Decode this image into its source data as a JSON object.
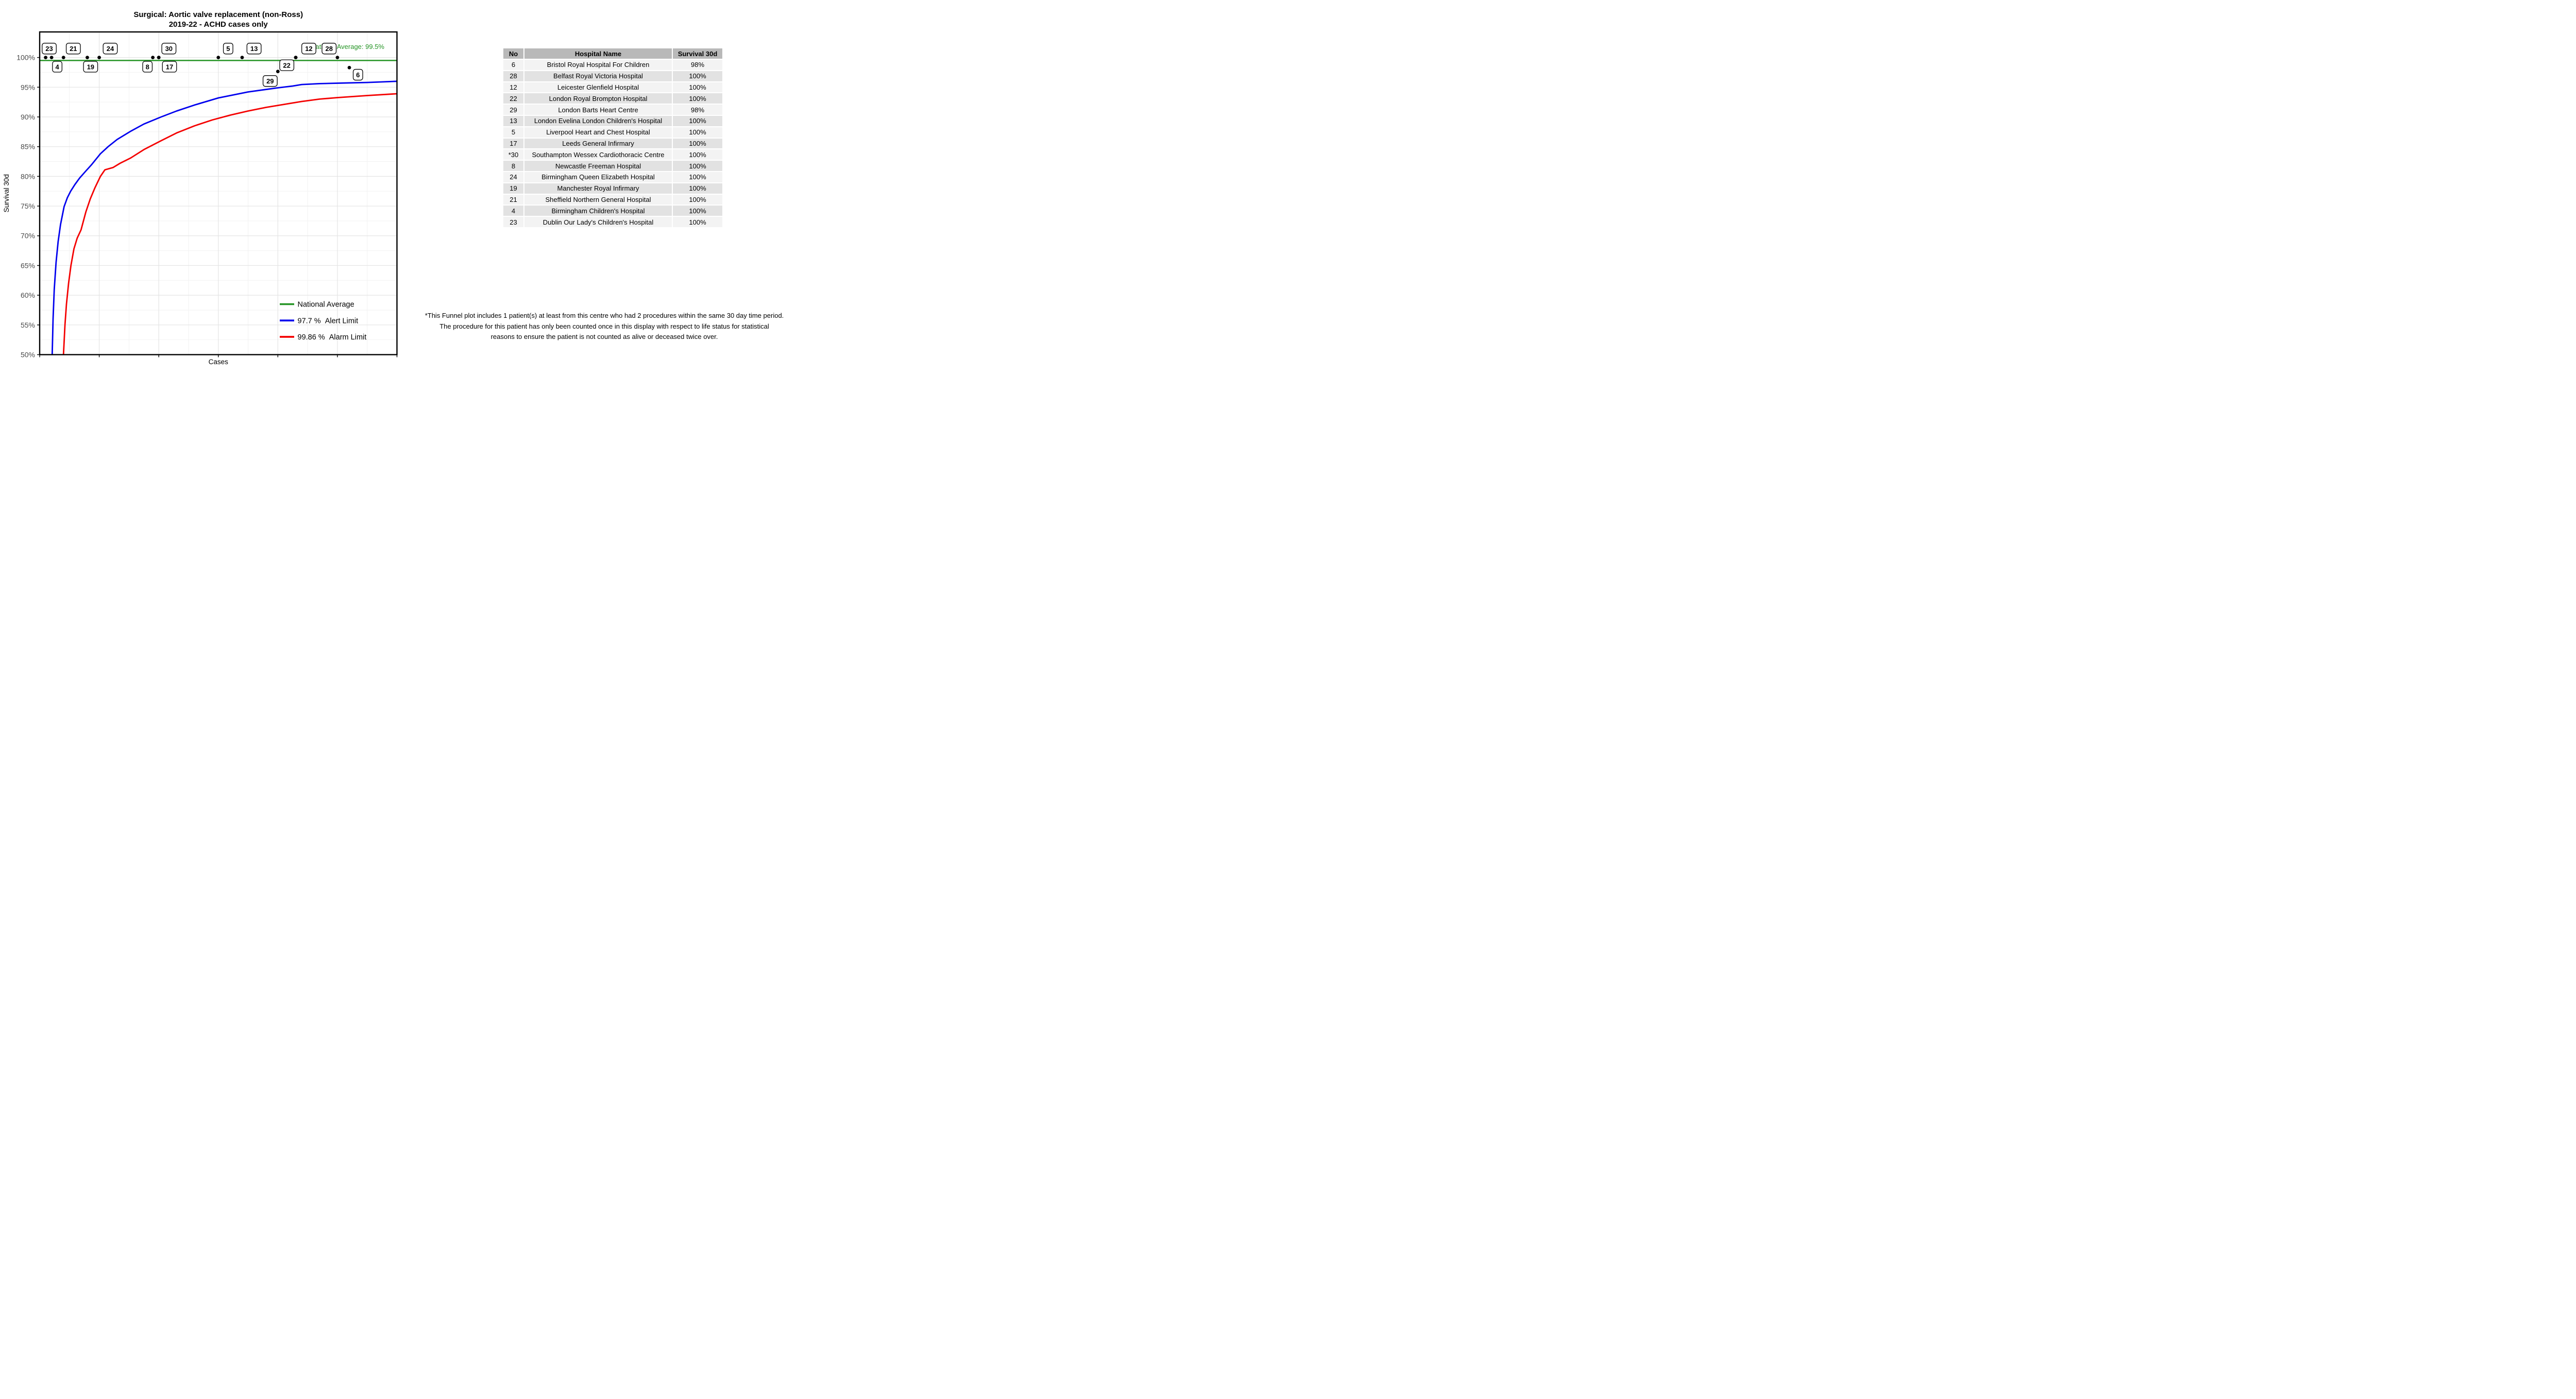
{
  "chart_data": {
    "type": "scatter",
    "title": "Surgical: Aortic valve replacement (non-Ross)",
    "subtitle": "2019-22 - ACHD cases only",
    "xlabel": "Cases",
    "ylabel": "Survival 30d",
    "xlim": [
      0,
      120
    ],
    "ylim": [
      50,
      100
    ],
    "ylim_draw": [
      50,
      104.3
    ],
    "grid": "major and minor, light grey on white, boxed black border",
    "x_ticks": [
      0,
      20,
      40,
      60,
      80,
      100,
      120
    ],
    "x_tick_labels_shown": false,
    "y_ticks": [
      {
        "value": 100,
        "label": "100%"
      },
      {
        "value": 95,
        "label": "95%"
      },
      {
        "value": 90,
        "label": "90%"
      },
      {
        "value": 85,
        "label": "85%"
      },
      {
        "value": 80,
        "label": "80%"
      },
      {
        "value": 75,
        "label": "75%"
      },
      {
        "value": 70,
        "label": "70%"
      },
      {
        "value": 65,
        "label": "65%"
      },
      {
        "value": 60,
        "label": "60%"
      },
      {
        "value": 55,
        "label": "55%"
      },
      {
        "value": 50,
        "label": "50%"
      }
    ],
    "national_average": {
      "value": 99.5,
      "annotation": "National Average: 99.5%",
      "legend_label": "National Average",
      "color": "#259425"
    },
    "alert_limit": {
      "legend_label": "97.7 %  Alert Limit",
      "color": "#0000EE",
      "points": [
        [
          4.2,
          50
        ],
        [
          4.5,
          56
        ],
        [
          4.9,
          61
        ],
        [
          5.5,
          65.5
        ],
        [
          6.2,
          69
        ],
        [
          7,
          71.9
        ],
        [
          8.2,
          74.9
        ],
        [
          9.3,
          76.4
        ],
        [
          10.4,
          77.5
        ],
        [
          11.8,
          78.6
        ],
        [
          13.4,
          79.7
        ],
        [
          15.5,
          80.9
        ],
        [
          17.5,
          82
        ],
        [
          20.4,
          83.8
        ],
        [
          23,
          85
        ],
        [
          26,
          86.2
        ],
        [
          30.6,
          87.6
        ],
        [
          35,
          88.8
        ],
        [
          40.8,
          90
        ],
        [
          46,
          91
        ],
        [
          52,
          92
        ],
        [
          60,
          93.2
        ],
        [
          70,
          94.2
        ],
        [
          80,
          94.9
        ],
        [
          85,
          95.2
        ],
        [
          88,
          95.45
        ],
        [
          94,
          95.6
        ],
        [
          102,
          95.7
        ],
        [
          110,
          95.8
        ],
        [
          120,
          96
        ]
      ]
    },
    "alarm_limit": {
      "legend_label": "99.86 %  Alarm Limit",
      "color": "#F40000",
      "points": [
        [
          8,
          50
        ],
        [
          8.5,
          55
        ],
        [
          9,
          58.5
        ],
        [
          9.7,
          62
        ],
        [
          10.5,
          65
        ],
        [
          11.5,
          67.8
        ],
        [
          12.6,
          69.6
        ],
        [
          13.9,
          71
        ],
        [
          15.5,
          74
        ],
        [
          17,
          76.2
        ],
        [
          18.5,
          78
        ],
        [
          20.4,
          80
        ],
        [
          21.9,
          81.1
        ],
        [
          24.7,
          81.5
        ],
        [
          27,
          82.2
        ],
        [
          30.6,
          83.1
        ],
        [
          35,
          84.5
        ],
        [
          40.8,
          86
        ],
        [
          46,
          87.3
        ],
        [
          52,
          88.5
        ],
        [
          58,
          89.5
        ],
        [
          64,
          90.3
        ],
        [
          70,
          91
        ],
        [
          76,
          91.6
        ],
        [
          82,
          92.1
        ],
        [
          88,
          92.6
        ],
        [
          94,
          93
        ],
        [
          100,
          93.25
        ],
        [
          110,
          93.6
        ],
        [
          120,
          93.9
        ]
      ]
    },
    "legend_position": "inside bottom-right",
    "point_color": "#000000",
    "points": [
      {
        "no": "23",
        "cases": 2,
        "pct": 100,
        "label": {
          "cases": 3.2,
          "pct": 101.5
        }
      },
      {
        "no": "4",
        "cases": 4,
        "pct": 100,
        "label": {
          "cases": 5.9,
          "pct": 98.45
        }
      },
      {
        "no": "21",
        "cases": 8,
        "pct": 100,
        "label": {
          "cases": 11.3,
          "pct": 101.5
        }
      },
      {
        "no": "19",
        "cases": 16,
        "pct": 100,
        "label": {
          "cases": 17.1,
          "pct": 98.45
        }
      },
      {
        "no": "24",
        "cases": 20,
        "pct": 100,
        "label": {
          "cases": 23.7,
          "pct": 101.5
        }
      },
      {
        "no": "8",
        "cases": 38,
        "pct": 100,
        "label": {
          "cases": 36.2,
          "pct": 98.45
        }
      },
      {
        "no": "30",
        "cases": 40,
        "pct": 100,
        "label": {
          "cases": 43.4,
          "pct": 101.5
        }
      },
      {
        "no": "17",
        "cases": 40,
        "pct": 100,
        "label": {
          "cases": 43.6,
          "pct": 98.45
        }
      },
      {
        "no": "5",
        "cases": 60,
        "pct": 100,
        "label": {
          "cases": 63.3,
          "pct": 101.5
        }
      },
      {
        "no": "13",
        "cases": 68,
        "pct": 100,
        "label": {
          "cases": 72,
          "pct": 101.5
        }
      },
      {
        "no": "12",
        "cases": 86,
        "pct": 100,
        "label": {
          "cases": 90.4,
          "pct": 101.5
        }
      },
      {
        "no": "22",
        "cases": 86,
        "pct": 100,
        "label": {
          "cases": 83,
          "pct": 98.7
        }
      },
      {
        "no": "28",
        "cases": 100,
        "pct": 100,
        "label": {
          "cases": 97.2,
          "pct": 101.5
        }
      },
      {
        "no": "29",
        "cases": 80,
        "pct": 97.65,
        "label": {
          "cases": 77.4,
          "pct": 96.05
        }
      },
      {
        "no": "6",
        "cases": 104,
        "pct": 98.3,
        "label": {
          "cases": 106.9,
          "pct": 97.1
        }
      }
    ]
  },
  "table": {
    "headers": [
      "No",
      "Hospital Name",
      "Survival 30d"
    ],
    "rows": [
      [
        "6",
        "Bristol Royal Hospital For Children",
        "98%"
      ],
      [
        "28",
        "Belfast Royal Victoria Hospital",
        "100%"
      ],
      [
        "12",
        "Leicester Glenfield Hospital",
        "100%"
      ],
      [
        "22",
        "London Royal Brompton Hospital",
        "100%"
      ],
      [
        "29",
        "London Barts Heart Centre",
        "98%"
      ],
      [
        "13",
        "London Evelina London Children's Hospital",
        "100%"
      ],
      [
        "5",
        "Liverpool Heart and Chest Hospital",
        "100%"
      ],
      [
        "17",
        "Leeds General Infirmary",
        "100%"
      ],
      [
        "*30",
        "Southampton Wessex Cardiothoracic Centre",
        "100%"
      ],
      [
        "8",
        "Newcastle Freeman Hospital",
        "100%"
      ],
      [
        "24",
        "Birmingham Queen Elizabeth Hospital",
        "100%"
      ],
      [
        "19",
        "Manchester Royal Infirmary",
        "100%"
      ],
      [
        "21",
        "Sheffield Northern General Hospital",
        "100%"
      ],
      [
        "4",
        "Birmingham Children's Hospital",
        "100%"
      ],
      [
        "23",
        "Dublin Our Lady's Children's Hospital",
        "100%"
      ]
    ]
  },
  "footnote": {
    "lines": [
      "*This Funnel plot includes 1 patient(s) at least from this centre who had 2 procedures within the same 30 day time period.",
      "The procedure for this patient has only been counted once in this display with respect to life status for statistical",
      "reasons to ensure the patient is not counted as alive or deceased twice over."
    ]
  },
  "colors": {
    "background": "#ffffff",
    "tick_label": "#4a4a4a",
    "grid_major": "#e4e4e4",
    "grid_minor": "#f2f2f2",
    "table_header_bg": "#b9b9b9",
    "table_row_light": "#f3f3f3",
    "table_row_dark": "#e2e2e2"
  }
}
